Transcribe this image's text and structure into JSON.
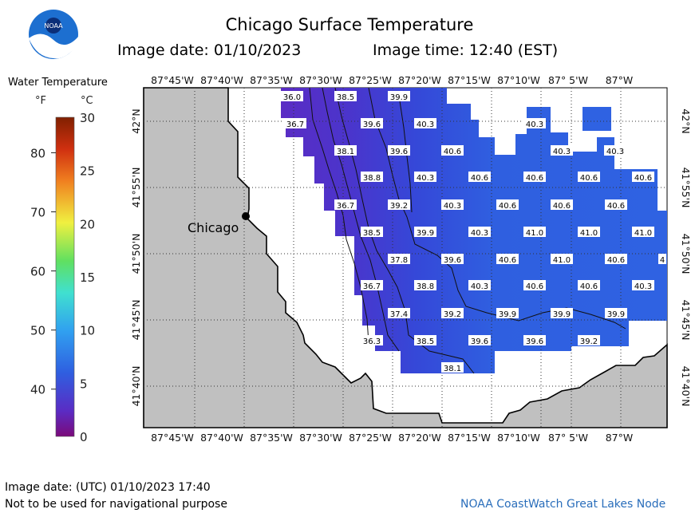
{
  "header": {
    "title": "Chicago Surface Temperature",
    "image_date": "Image date: 01/10/2023",
    "image_time": "Image time: 12:40 (EST)"
  },
  "logo_text": "NOAA",
  "legend": {
    "title": "Water Temperature",
    "unit_f": "°F",
    "unit_c": "°C",
    "f_ticks": [
      "80",
      "70",
      "60",
      "50",
      "40"
    ],
    "c_ticks": [
      "30",
      "25",
      "20",
      "15",
      "10",
      "5",
      "0"
    ],
    "c_range": [
      0,
      30
    ]
  },
  "map": {
    "lon_labels": [
      "87°45'W",
      "87°40'W",
      "87°35'W",
      "87°30'W",
      "87°25'W",
      "87°20'W",
      "87°15'W",
      "87°10'W",
      "87° 5'W",
      "87°W"
    ],
    "lat_labels": [
      "42°N",
      "41°55'N",
      "41°50'N",
      "41°45'N",
      "41°40'N"
    ],
    "city_label": "Chicago",
    "temperatures_f": [
      "36.0",
      "38.5",
      "39.9",
      "36.7",
      "39.6",
      "40.3",
      "40.3",
      "38.1",
      "39.6",
      "40.6",
      "40.3",
      "40.3",
      "38.8",
      "40.3",
      "40.6",
      "40.6",
      "40.6",
      "40.6",
      "36.7",
      "39.2",
      "40.3",
      "40.6",
      "40.6",
      "40.6",
      "38.5",
      "39.9",
      "40.3",
      "41.0",
      "41.0",
      "41.0",
      "37.8",
      "39.6",
      "40.6",
      "41.0",
      "40.6",
      "4",
      "36.7",
      "38.8",
      "40.3",
      "40.6",
      "40.6",
      "40.3",
      "37.4",
      "39.2",
      "39.9",
      "39.9",
      "39.9",
      "36.3",
      "38.5",
      "39.6",
      "39.6",
      "39.2",
      "38.1"
    ],
    "colors": {
      "land": "#c0c0c0",
      "water_warm": "#2f5fe0",
      "water_cold": "#5a2cc4",
      "water_mid": "#3d45d6"
    }
  },
  "footer": {
    "utc_date": "Image date: (UTC) 01/10/2023  17:40",
    "disclaimer": "Not to be used for navigational purpose",
    "credit": "NOAA CoastWatch Great Lakes Node"
  }
}
